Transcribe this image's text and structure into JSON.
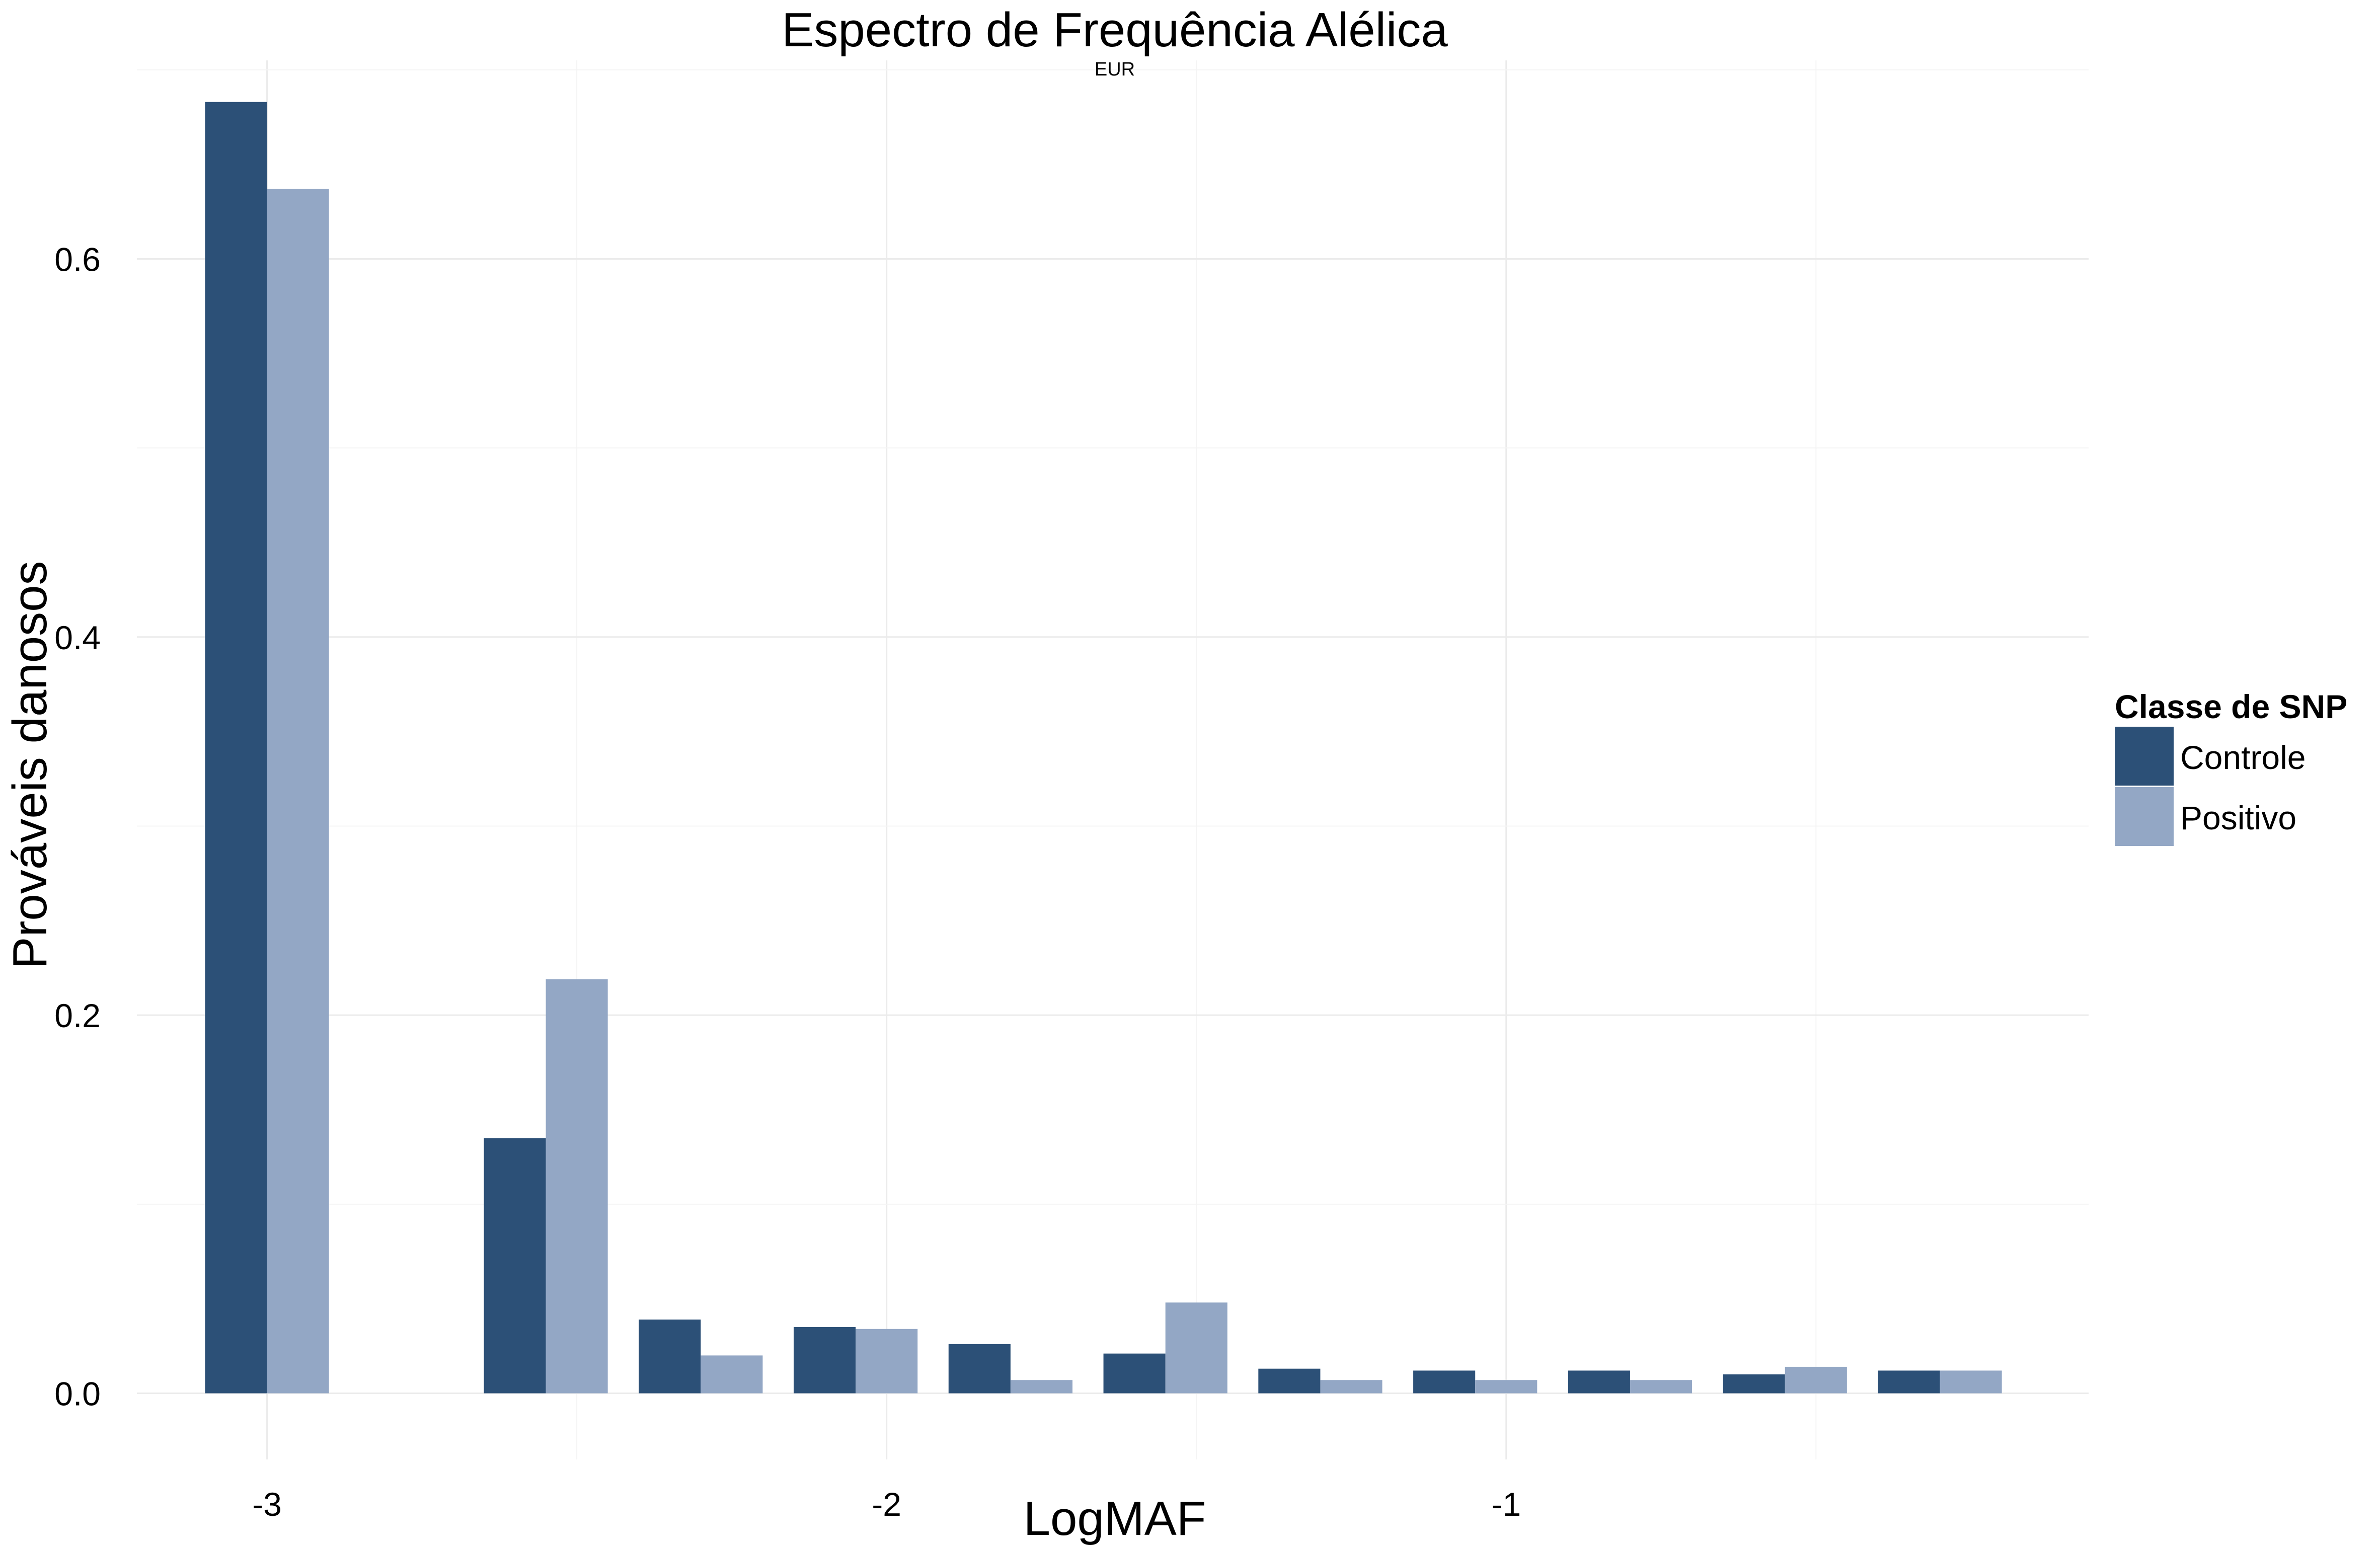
{
  "chart_data": {
    "type": "bar",
    "title": "Espectro de Frequência Alélica",
    "subtitle": "EUR",
    "xlabel": "LogMAF",
    "ylabel": "Prováveis danosos",
    "x_ticks": [
      -3,
      -2,
      -1
    ],
    "x_tick_labels": [
      "-3",
      "-2",
      "-1"
    ],
    "y_ticks": [
      0.0,
      0.2,
      0.4,
      0.6
    ],
    "y_tick_labels": [
      "0.0",
      "0.2",
      "0.4",
      "0.6"
    ],
    "xlim": [
      -3.21,
      -0.06
    ],
    "ylim": [
      -0.035,
      0.705
    ],
    "grid": true,
    "legend": {
      "title": "Classe de SNP",
      "position": "right"
    },
    "bin_width": 0.2,
    "series": [
      {
        "name": "Controle",
        "color": "#2c5077",
        "x": [
          -3.0,
          -2.55,
          -2.3,
          -2.05,
          -1.8,
          -1.55,
          -1.3,
          -1.05,
          -0.8,
          -0.55,
          -0.3
        ],
        "values": [
          0.683,
          0.135,
          0.039,
          0.035,
          0.026,
          0.021,
          0.013,
          0.012,
          0.012,
          0.01,
          0.012
        ]
      },
      {
        "name": "Positivo",
        "color": "#93a7c5",
        "x": [
          -3.0,
          -2.55,
          -2.3,
          -2.05,
          -1.8,
          -1.55,
          -1.3,
          -1.05,
          -0.8,
          -0.55,
          -0.3
        ],
        "values": [
          0.637,
          0.219,
          0.02,
          0.034,
          0.007,
          0.048,
          0.007,
          0.007,
          0.007,
          0.014,
          0.012
        ]
      }
    ]
  }
}
